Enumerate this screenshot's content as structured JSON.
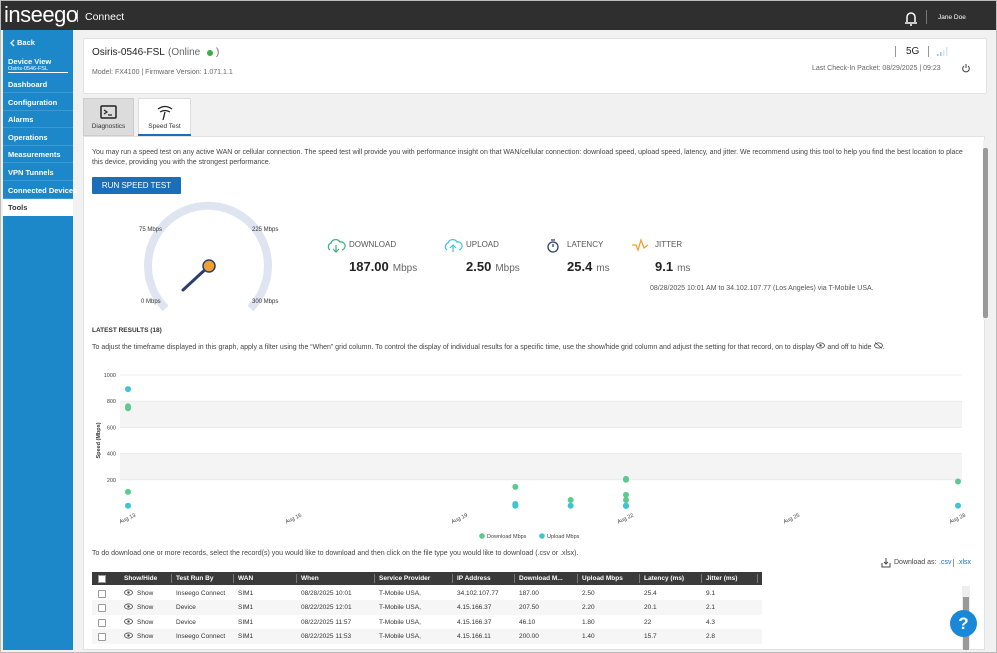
{
  "topbar": {
    "brand": "inseego",
    "product": "Connect",
    "user": "Jane Doe"
  },
  "sidebar": {
    "back": "Back",
    "device_view": "Device View",
    "device_name": "Osiris-0546-FSL",
    "items": [
      "Dashboard",
      "Configuration",
      "Alarms",
      "Operations",
      "Measurements",
      "VPN Tunnels",
      "Connected Devices",
      "Tools"
    ],
    "selected": 7
  },
  "device": {
    "name": "Osiris-0546-FSL",
    "status_open": "(Online",
    "status_close": ")",
    "info": "Model: FX4100 | Firmware Version: 1.071.1.1",
    "network": "5G",
    "check_in": "Last Check-In Packet: 08/29/2025 | 09:23"
  },
  "tabs": [
    "Diagnostics",
    "Speed Test"
  ],
  "speed_test": {
    "intro": "You may run a speed test on any active WAN or cellular connection. The speed test will provide you with performance insight on that WAN/cellular connection: download speed, upload speed, latency, and jitter. We recommend using this tool to help you find the best location to place this device, providing you with the strongest performance.",
    "button": "RUN SPEED TEST",
    "gauge_labels": [
      "0 Mbps",
      "75 Mbps",
      "225 Mbps",
      "300 Mbps"
    ],
    "metrics": [
      {
        "label": "DOWNLOAD",
        "value": "187.00",
        "unit": "Mbps"
      },
      {
        "label": "UPLOAD",
        "value": "2.50",
        "unit": "Mbps"
      },
      {
        "label": "LATENCY",
        "value": "25.4",
        "unit": "ms"
      },
      {
        "label": "JITTER",
        "value": "9.1",
        "unit": "ms"
      }
    ],
    "summary": "08/28/2025 10:01 AM to 34.102.107.77 (Los Angeles) via T-Mobile USA."
  },
  "results": {
    "title": "LATEST RESULTS (18)",
    "description": [
      "To adjust the timeframe displayed in this graph, apply a filter using the “When” grid column. To control the display of individual results for a specific time, use the show/hide grid column and adjust the setting for that record, on to display",
      "and off to hide",
      "."
    ],
    "chart": {
      "type": "scatter",
      "y_label": "Speed (Mbps)",
      "ylim": [
        0,
        1000
      ],
      "yticks": [
        200,
        400,
        600,
        800,
        1000
      ],
      "xlim": [
        "Aug 13",
        "Aug 28"
      ],
      "xticks": [
        "Aug 13",
        "Aug 16",
        "Aug 19",
        "Aug 22",
        "Aug 25",
        "Aug 28"
      ],
      "series": [
        {
          "name": "Download Mbps",
          "color": "#5cc98f",
          "x": [
            "Aug 13",
            "Aug 13",
            "Aug 13",
            "Aug 20",
            "Aug 20",
            "Aug 21",
            "Aug 22",
            "Aug 22",
            "Aug 22",
            "Aug 22",
            "Aug 28"
          ],
          "values": [
            108,
            746,
            761,
            146,
            10,
            46,
            200,
            207.5,
            85,
            46.1,
            187
          ]
        },
        {
          "name": "Upload Mbps",
          "color": "#3ec5d3",
          "x": [
            "Aug 13",
            "Aug 13",
            "Aug 20",
            "Aug 20",
            "Aug 21",
            "Aug 22",
            "Aug 22",
            "Aug 22",
            "Aug 28"
          ],
          "values": [
            892,
            2,
            2,
            15,
            2,
            2.2,
            1.8,
            1.4,
            2.5
          ]
        }
      ]
    },
    "download_note": "To do download one or more records, select the record(s) you would like to download and then click on the file type you would like to download (.csv or .xlsx).",
    "download_as": "Download as:",
    "formats": [
      ".csv",
      ".xlsx"
    ]
  },
  "table": {
    "columns": [
      "Show/Hide",
      "Test Run By",
      "WAN",
      "When",
      "Service Provider",
      "IP Address",
      "Download M...",
      "Upload Mbps",
      "Latency (ms)",
      "Jitter (ms)"
    ],
    "rows": [
      [
        "Show",
        "Inseego Connect",
        "SIM1",
        "08/28/2025 10:01",
        "T-Mobile USA,",
        "34.102.107.77",
        "187.00",
        "2.50",
        "25.4",
        "9.1"
      ],
      [
        "Show",
        "Device",
        "SIM1",
        "08/22/2025 12:01",
        "T-Mobile USA,",
        "4.15.166.37",
        "207.50",
        "2.20",
        "20.1",
        "2.1"
      ],
      [
        "Show",
        "Device",
        "SIM1",
        "08/22/2025 11:57",
        "T-Mobile USA,",
        "4.15.166.37",
        "46.10",
        "1.80",
        "22",
        "4.3"
      ],
      [
        "Show",
        "Inseego Connect",
        "SIM1",
        "08/22/2025 11:53",
        "T-Mobile USA,",
        "4.15.166.11",
        "200.00",
        "1.40",
        "15.7",
        "2.8"
      ]
    ]
  },
  "help": "?"
}
